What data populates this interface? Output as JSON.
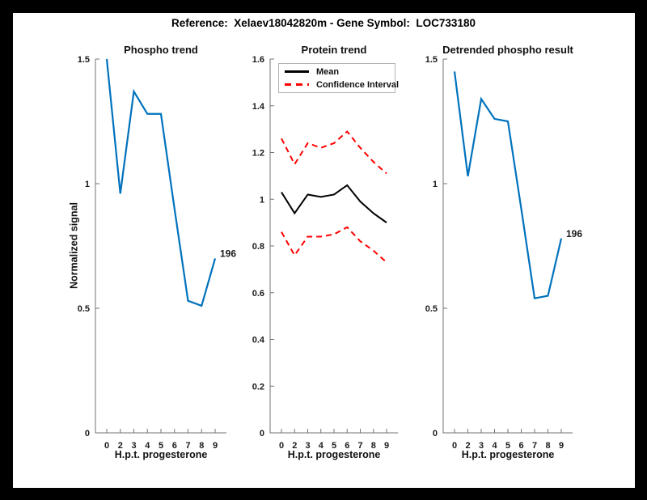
{
  "figure": {
    "title": "Reference:  Xelaev18042820m - Gene Symbol:  LOC733180",
    "background_color": "#ffffff",
    "frame_color": "#000000"
  },
  "colors": {
    "line_blue": "#0072BD",
    "mean_black": "#000000",
    "ci_red": "#FF0000",
    "axis_gray": "#737373",
    "text": "#1a1a1a"
  },
  "chart_data": [
    {
      "type": "line",
      "title": "Phospho trend",
      "xlabel": "H.p.t. progesterone",
      "ylabel": "Normalized signal",
      "x_tick_labels": [
        "0",
        "2",
        "3",
        "4",
        "5",
        "6",
        "7",
        "8",
        "9"
      ],
      "ylim": [
        0,
        1.5
      ],
      "yticks": [
        0,
        0.5,
        1,
        1.5
      ],
      "ytick_labels": [
        "0",
        "0.5",
        "1",
        "1.5"
      ],
      "grid": false,
      "legend_position": "none",
      "series": [
        {
          "name": "phospho-signal",
          "color": "#0072BD",
          "style": "solid",
          "width": 2.2,
          "values": [
            1.5,
            0.96,
            1.37,
            1.28,
            1.28,
            0.9,
            0.53,
            0.51,
            0.7
          ]
        }
      ],
      "annotation": {
        "text": "196",
        "attached_to": "last-point"
      }
    },
    {
      "type": "line",
      "title": "Protein trend",
      "xlabel": "H.p.t. progesterone",
      "ylabel": "",
      "x_tick_labels": [
        "0",
        "2",
        "3",
        "4",
        "5",
        "6",
        "7",
        "8",
        "9"
      ],
      "ylim": [
        0,
        1.6
      ],
      "yticks": [
        0,
        0.2,
        0.4,
        0.6,
        0.8,
        1,
        1.2,
        1.4,
        1.6
      ],
      "ytick_labels": [
        "0",
        "0.2",
        "0.4",
        "0.6",
        "0.8",
        "1",
        "1.2",
        "1.4",
        "1.6"
      ],
      "grid": false,
      "legend": {
        "position": "top-left",
        "entries": [
          {
            "label": "Mean",
            "color": "#000000",
            "style": "solid"
          },
          {
            "label": "Confidence Interval",
            "color": "#FF0000",
            "style": "dashed"
          }
        ]
      },
      "series": [
        {
          "name": "mean",
          "color": "#000000",
          "style": "solid",
          "width": 2,
          "values": [
            1.03,
            0.94,
            1.02,
            1.01,
            1.02,
            1.06,
            0.99,
            0.94,
            0.9
          ]
        },
        {
          "name": "confidence-interval-upper",
          "color": "#FF0000",
          "style": "dashed",
          "width": 2,
          "values": [
            1.26,
            1.15,
            1.24,
            1.22,
            1.24,
            1.29,
            1.22,
            1.16,
            1.11
          ]
        },
        {
          "name": "confidence-interval-lower",
          "color": "#FF0000",
          "style": "dashed",
          "width": 2,
          "values": [
            0.86,
            0.76,
            0.84,
            0.84,
            0.85,
            0.88,
            0.82,
            0.78,
            0.73
          ]
        }
      ]
    },
    {
      "type": "line",
      "title": "Detrended phospho result",
      "xlabel": "H.p.t. progesterone",
      "ylabel": "",
      "x_tick_labels": [
        "0",
        "2",
        "3",
        "4",
        "5",
        "6",
        "7",
        "8",
        "9"
      ],
      "ylim": [
        0,
        1.5
      ],
      "yticks": [
        0,
        0.5,
        1,
        1.5
      ],
      "ytick_labels": [
        "0",
        "0.5",
        "1",
        "1.5"
      ],
      "grid": false,
      "legend_position": "none",
      "series": [
        {
          "name": "detrended-phospho-signal",
          "color": "#0072BD",
          "style": "solid",
          "width": 2.2,
          "values": [
            1.45,
            1.03,
            1.34,
            1.26,
            1.25,
            0.9,
            0.54,
            0.55,
            0.78
          ]
        }
      ],
      "annotation": {
        "text": "196",
        "attached_to": "last-point"
      }
    }
  ]
}
